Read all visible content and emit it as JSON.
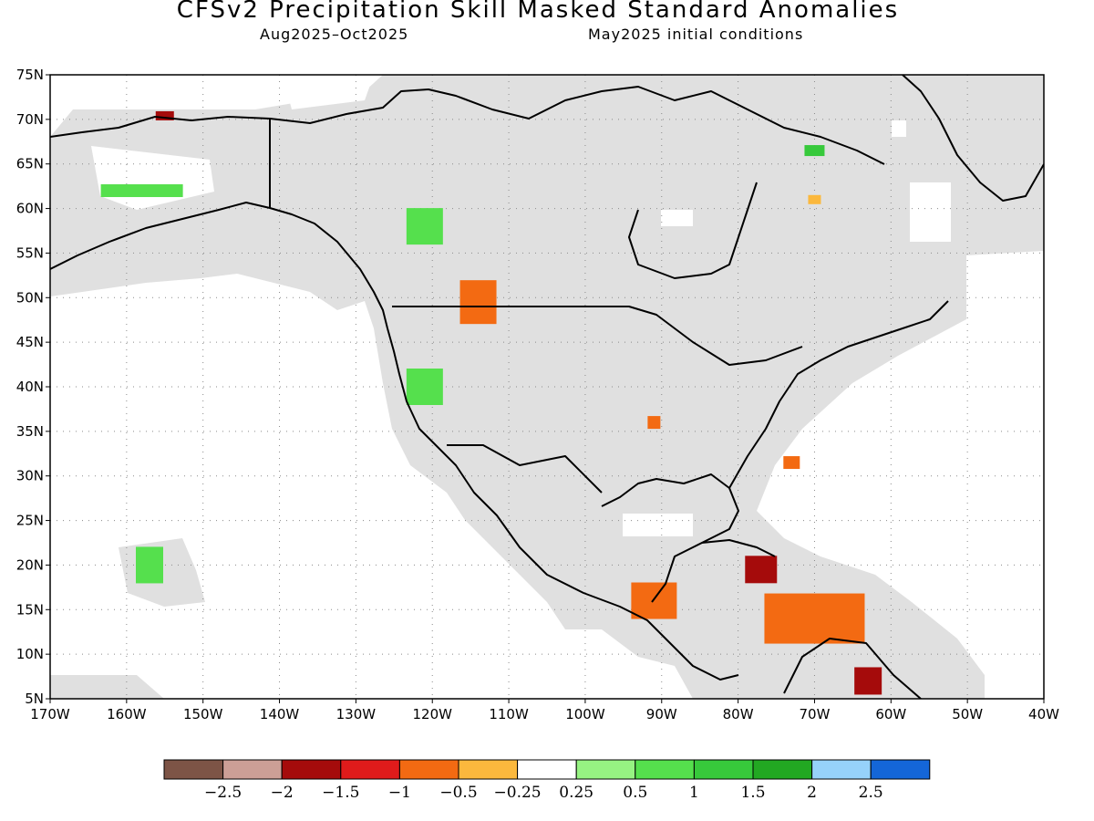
{
  "title": "CFSv2 Precipitation Skill Masked Standard Anomalies",
  "period": "Aug2025–Oct2025",
  "init": "May2025 initial conditions",
  "lat_labels": [
    "75N",
    "70N",
    "65N",
    "60N",
    "55N",
    "50N",
    "45N",
    "40N",
    "35N",
    "30N",
    "25N",
    "20N",
    "15N",
    "10N",
    "5N"
  ],
  "lon_labels": [
    "170W",
    "160W",
    "150W",
    "140W",
    "130W",
    "120W",
    "110W",
    "100W",
    "90W",
    "80W",
    "70W",
    "60W",
    "50W",
    "40W"
  ],
  "colorbar": {
    "colors": [
      "#7d5446",
      "#cc9f96",
      "#a50b0b",
      "#e01b1b",
      "#f36a12",
      "#fbb83d",
      "#ffffff",
      "#96f382",
      "#55e04d",
      "#37c93b",
      "#22a822",
      "#96d2fa",
      "#1466d8"
    ],
    "labels": [
      "−2.5",
      "−2",
      "−1.5",
      "−1",
      "−0.5",
      "−0.25",
      "0.25",
      "0.5",
      "1",
      "1.5",
      "2",
      "2.5"
    ]
  },
  "mask_color": "#e0e0e0",
  "map_extent": {
    "lon_min": -170,
    "lon_max": -40,
    "lat_min": 5,
    "lat_max": 75
  },
  "regions": [
    {
      "name": "alaska-north-slope",
      "value": "−1.5",
      "color": "#a50b0b",
      "lon": -155,
      "lat": 70.4
    },
    {
      "name": "alaska-southwest",
      "value": "1",
      "color": "#55e04d",
      "lon": -158,
      "lat": 62
    },
    {
      "name": "greenland-coast",
      "value": "1.5",
      "color": "#37c93b",
      "lon": -70,
      "lat": 66.5
    },
    {
      "name": "labrador",
      "value": "−0.5",
      "color": "#fbb83d",
      "lon": -70,
      "lat": 61
    },
    {
      "name": "british-columbia",
      "value": "1",
      "color": "#55e04d",
      "lon": -121,
      "lat": 58
    },
    {
      "name": "alberta-south",
      "value": "−1",
      "color": "#f36a12",
      "lon": -114,
      "lat": 49.5
    },
    {
      "name": "northern-california",
      "value": "1",
      "color": "#55e04d",
      "lon": -121,
      "lat": 40
    },
    {
      "name": "arkansas",
      "value": "−1",
      "color": "#f36a12",
      "lon": -91,
      "lat": 36
    },
    {
      "name": "atlantic-offshore",
      "value": "−1",
      "color": "#f36a12",
      "lon": -73,
      "lat": 31.5
    },
    {
      "name": "central-america",
      "value": "−1",
      "color": "#f36a12",
      "lon": -91,
      "lat": 16
    },
    {
      "name": "caribbean",
      "value": "−1",
      "color": "#f36a12",
      "lon": -70,
      "lat": 14
    },
    {
      "name": "cuba-east",
      "value": "−1.5",
      "color": "#a50b0b",
      "lon": -77,
      "lat": 19.5
    },
    {
      "name": "venezuela",
      "value": "−1.5",
      "color": "#a50b0b",
      "lon": -63,
      "lat": 7
    },
    {
      "name": "hawaii",
      "value": "1",
      "color": "#55e04d",
      "lon": -157,
      "lat": 20
    }
  ]
}
